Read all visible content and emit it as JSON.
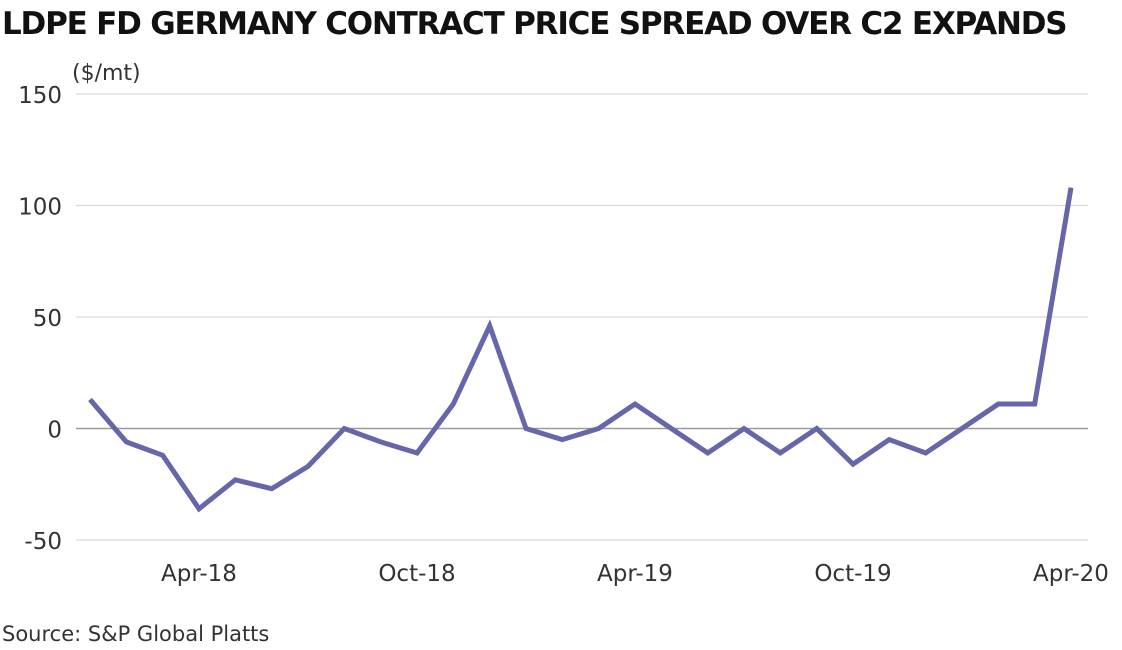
{
  "chart_data": {
    "type": "line",
    "title": "LDPE FD GERMANY CONTRACT PRICE SPREAD OVER C2 EXPANDS",
    "unit_label": "($/mt)",
    "source": "Source: S&P Global Platts",
    "xlabel": "",
    "ylabel": "",
    "ylim": [
      -50,
      150
    ],
    "yticks": [
      -50,
      0,
      50,
      100,
      150
    ],
    "grid": true,
    "legend": "none",
    "x_tick_labels": [
      "Apr-18",
      "Oct-18",
      "Apr-19",
      "Oct-19",
      "Apr-20"
    ],
    "x_tick_positions": [
      "2018-04",
      "2018-10",
      "2019-04",
      "2019-10",
      "2020-04"
    ],
    "series": [
      {
        "color": "#6666aa",
        "x": [
          "2018-01",
          "2018-02",
          "2018-03",
          "2018-04",
          "2018-05",
          "2018-06",
          "2018-07",
          "2018-08",
          "2018-09",
          "2018-10",
          "2018-11",
          "2018-12",
          "2019-01",
          "2019-02",
          "2019-03",
          "2019-04",
          "2019-05",
          "2019-06",
          "2019-07",
          "2019-08",
          "2019-09",
          "2019-10",
          "2019-11",
          "2019-12",
          "2020-01",
          "2020-02",
          "2020-03",
          "2020-04"
        ],
        "values": [
          13,
          -6,
          -12,
          -36,
          -23,
          -27,
          -17,
          0,
          -6,
          -11,
          11,
          46,
          0,
          -5,
          0,
          11,
          0,
          -11,
          0,
          -11,
          0,
          -16,
          -5,
          -11,
          0,
          11,
          11,
          108
        ]
      }
    ]
  }
}
